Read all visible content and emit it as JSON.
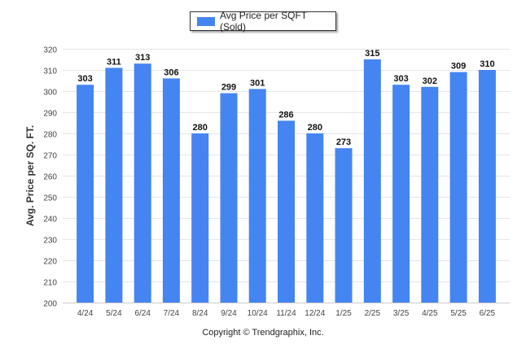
{
  "chart_data": {
    "type": "bar",
    "categories": [
      "4/24",
      "5/24",
      "6/24",
      "7/24",
      "8/24",
      "9/24",
      "10/24",
      "11/24",
      "12/24",
      "1/25",
      "2/25",
      "3/25",
      "4/25",
      "5/25",
      "6/25"
    ],
    "series": [
      {
        "name": "Avg Price per SQFT (Sold)",
        "values": [
          303,
          311,
          313,
          306,
          280,
          299,
          301,
          286,
          280,
          273,
          315,
          303,
          302,
          309,
          310
        ]
      }
    ],
    "ylabel": "Avg. Price per SQ. FT.",
    "xlabel": "",
    "ylim": [
      200,
      320
    ],
    "yticks": [
      200,
      210,
      220,
      230,
      240,
      250,
      260,
      270,
      280,
      290,
      300,
      310,
      320
    ],
    "grid": true,
    "legend_position": "top-center",
    "bar_color": "#4585f2"
  },
  "footer": {
    "copyright": "Copyright © Trendgraphix, Inc."
  }
}
